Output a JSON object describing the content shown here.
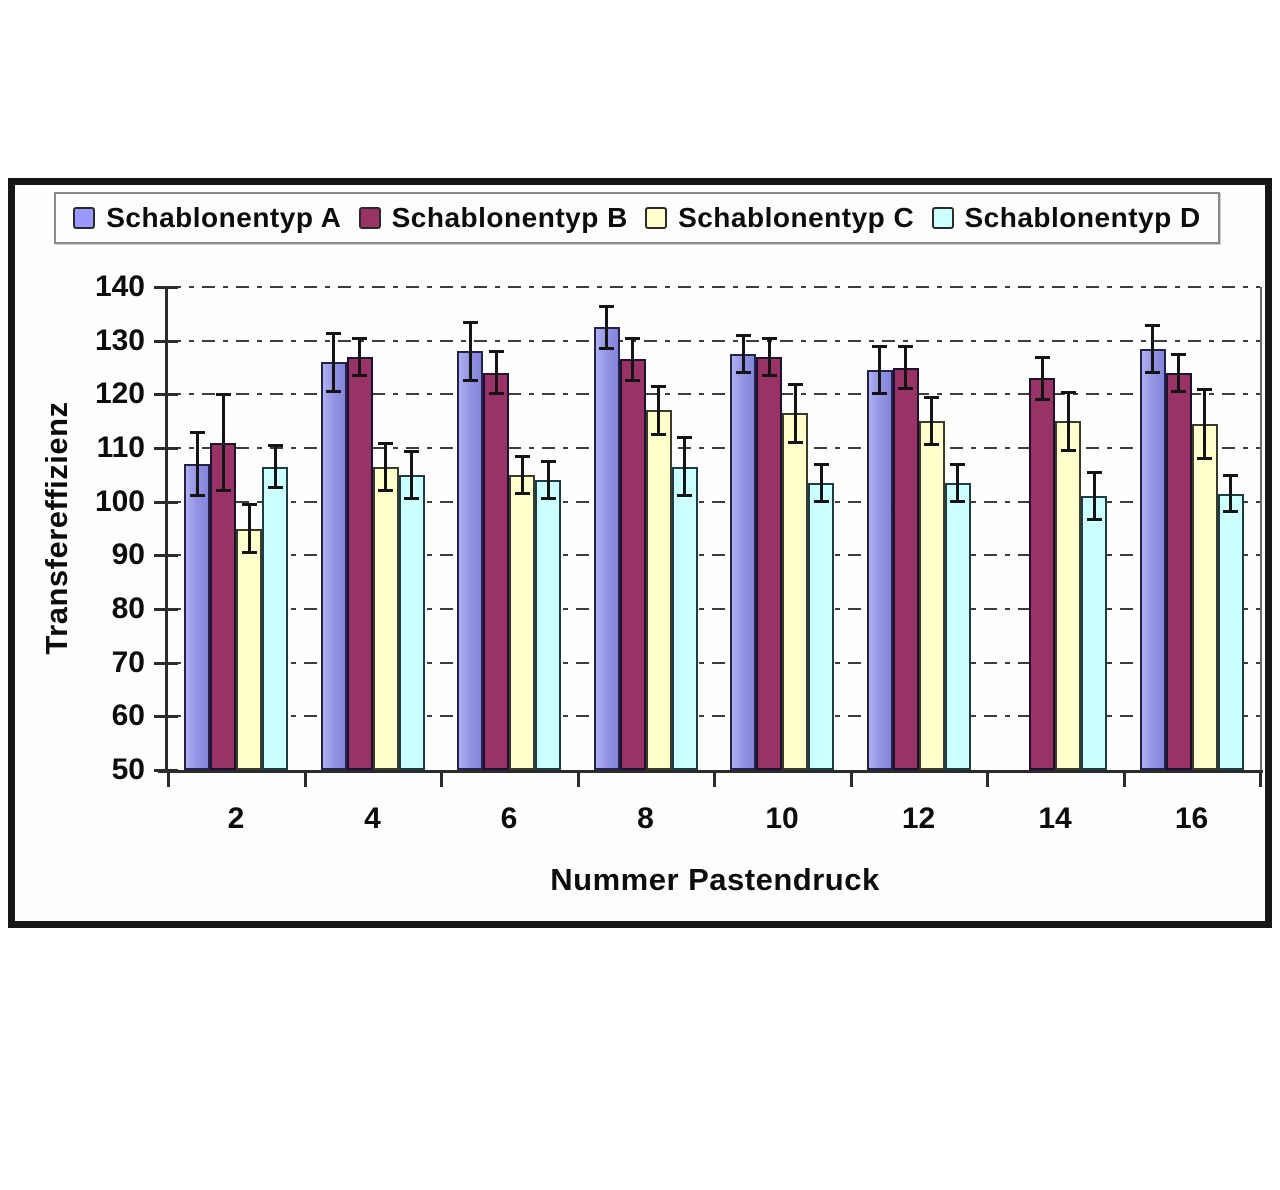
{
  "chart_data": {
    "type": "bar",
    "title": "",
    "xlabel": "Nummer Pastendruck",
    "ylabel": "Transfereffizienz",
    "ylim": [
      50,
      140
    ],
    "yticks": [
      140,
      130,
      120,
      110,
      100,
      90,
      80,
      70,
      60,
      50
    ],
    "grid": "horizontal dash-dot",
    "legend_position": "top",
    "error_bars": true,
    "categories": [
      "2",
      "4",
      "6",
      "8",
      "10",
      "12",
      "14",
      "16"
    ],
    "series": [
      {
        "name": "Schablonentyp A",
        "color": "#9999FF",
        "values": [
          107,
          126,
          128,
          132.5,
          127.5,
          124.5,
          null,
          128.5
        ],
        "errors": [
          6,
          5.5,
          5.5,
          4,
          3.5,
          4.5,
          null,
          4.5
        ]
      },
      {
        "name": "Schablonentyp B",
        "color": "#993366",
        "values": [
          111,
          127,
          124,
          126.5,
          127,
          125,
          123,
          124
        ],
        "errors": [
          9,
          3.5,
          4,
          4,
          3.5,
          4,
          4,
          3.5
        ]
      },
      {
        "name": "Schablonentyp C",
        "color": "#FFFFCC",
        "values": [
          95,
          106.5,
          105,
          117,
          116.5,
          115,
          115,
          114.5
        ],
        "errors": [
          4.5,
          4.5,
          3.5,
          4.5,
          5.5,
          4.5,
          5.5,
          6.5
        ]
      },
      {
        "name": "Schablonentyp D",
        "color": "#CCFFFF",
        "values": [
          106.5,
          105,
          104,
          106.5,
          103.5,
          103.5,
          101,
          101.5
        ],
        "errors": [
          4,
          4.5,
          3.5,
          5.5,
          3.5,
          3.5,
          4.5,
          3.5
        ]
      }
    ],
    "axis_color": "#2b2b2b",
    "frame_color": "#161616"
  }
}
